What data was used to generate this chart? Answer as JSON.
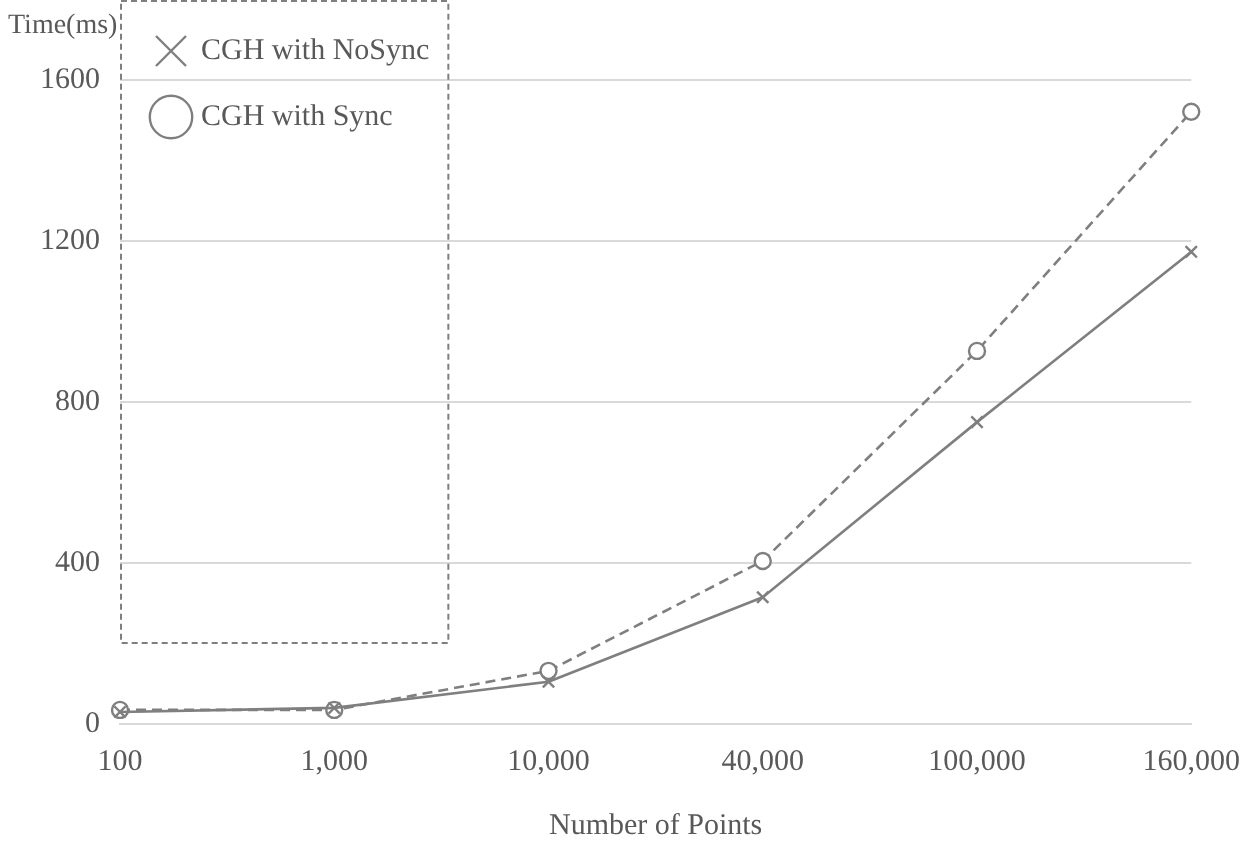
{
  "chart_data": {
    "type": "line",
    "xlabel": "Number of Points",
    "ylabel": "Time(ms)",
    "categories": [
      "100",
      "1,000",
      "10,000",
      "40,000",
      "100,000",
      "160,000"
    ],
    "series": [
      {
        "name": "CGH with NoSync",
        "color": "#7f7f7f",
        "marker": "cross",
        "line_style": "solid",
        "values": [
          30,
          40,
          105,
          315,
          750,
          1173
        ]
      },
      {
        "name": "CGH with Sync",
        "color": "#7f7f7f",
        "marker": "circle",
        "line_style": "dashed",
        "values": [
          35,
          35,
          132,
          405,
          927,
          1521
        ]
      }
    ],
    "ylim": [
      0,
      1600
    ],
    "yticks": [
      0,
      400,
      800,
      1200,
      1600
    ],
    "grid": "y",
    "legend": "top left"
  }
}
